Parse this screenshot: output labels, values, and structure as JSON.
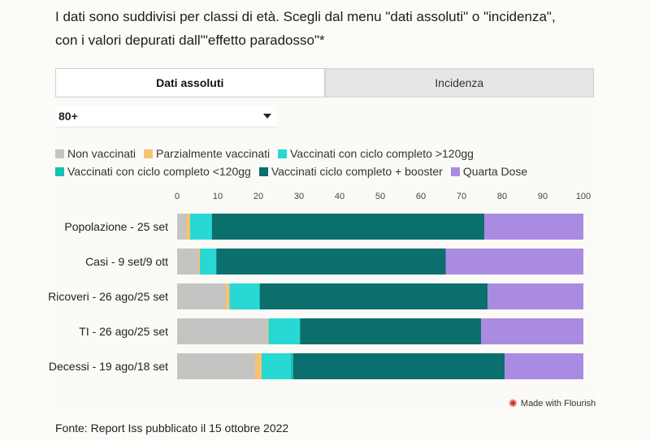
{
  "intro": {
    "line1": "I dati sono suddivisi per classi di età. Scegli dal menu \"dati assoluti\" o \"incidenza\",",
    "line2": "con i valori depurati dall'\"effetto paradosso\"*"
  },
  "tabs": [
    {
      "label": "Dati assoluti",
      "active": true
    },
    {
      "label": "Incidenza",
      "active": false
    }
  ],
  "age_select": {
    "value": "80+"
  },
  "credit": "Made with Flourish",
  "source": "Fonte: Report Iss pubblicato il 15 ottobre 2022",
  "colors": {
    "Non vaccinati": "#c4c4c2",
    "Parzialmente vaccinati": "#f8c270",
    "Vaccinati con ciclo completo >120gg": "#27d8d4",
    "Vaccinati con ciclo completo <120gg": "#19bfb3",
    "Vaccinati ciclo completo + booster": "#0b6f6e",
    "Quarta Dose": "#a98be2"
  },
  "chart_data": {
    "type": "bar",
    "orientation": "horizontal",
    "stacked": true,
    "xlim": [
      0,
      100
    ],
    "ticks": [
      0,
      10,
      20,
      30,
      40,
      50,
      60,
      70,
      80,
      90,
      100
    ],
    "legend_position": "top",
    "categories": [
      "Popolazione - 25 set",
      "Casi - 9 set/9 ott",
      "Ricoveri - 26 ago/25 set",
      "TI - 26 ago/25 set",
      "Decessi - 19 ago/18 set"
    ],
    "series": [
      {
        "name": "Non vaccinati",
        "values": [
          2.3,
          5.2,
          12.0,
          22.3,
          19.2
        ]
      },
      {
        "name": "Parzialmente vaccinati",
        "values": [
          0.9,
          0.4,
          0.9,
          0.2,
          1.6
        ]
      },
      {
        "name": "Vaccinati con ciclo completo >120gg",
        "values": [
          5.3,
          4.0,
          7.3,
          7.7,
          7.2
        ]
      },
      {
        "name": "Vaccinati con ciclo completo <120gg",
        "values": [
          0.1,
          0.1,
          0.2,
          0.1,
          0.6
        ]
      },
      {
        "name": "Vaccinati ciclo completo + booster",
        "values": [
          67.0,
          56.4,
          56.0,
          44.5,
          52.0
        ]
      },
      {
        "name": "Quarta Dose",
        "values": [
          24.4,
          33.9,
          23.6,
          25.2,
          19.4
        ]
      }
    ]
  }
}
